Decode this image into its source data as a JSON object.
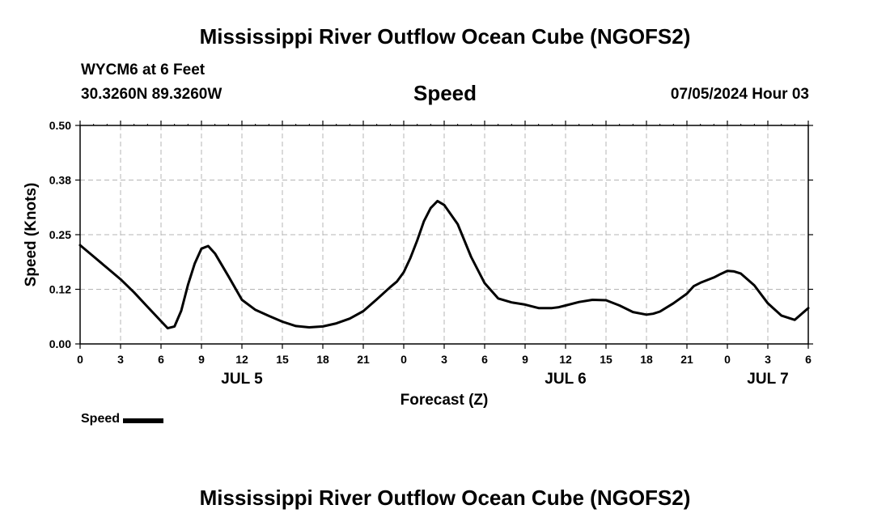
{
  "header": {
    "title": "Mississippi River Outflow Ocean Cube (NGOFS2)",
    "station": "WYCM6 at 6 Feet",
    "coords": "30.3260N  89.3260W",
    "datetime": "07/05/2024 Hour 03"
  },
  "footer": {
    "title": "Mississippi River Outflow Ocean Cube (NGOFS2)"
  },
  "legend": {
    "label": "Speed",
    "color": "#000000"
  },
  "chart_data": {
    "type": "line",
    "title": "Speed",
    "xlabel": "Forecast (Z)",
    "ylabel": "Speed (Knots)",
    "x_unit": "hours since 07/05/2024 00Z",
    "xlim": [
      0,
      54
    ],
    "ylim": [
      0,
      0.5
    ],
    "x_ticks": [
      0,
      3,
      6,
      9,
      12,
      15,
      18,
      21,
      24,
      27,
      30,
      33,
      36,
      39,
      42,
      45,
      48,
      51,
      54
    ],
    "x_tick_labels": [
      "0",
      "3",
      "6",
      "9",
      "12",
      "15",
      "18",
      "21",
      "0",
      "3",
      "6",
      "9",
      "12",
      "15",
      "18",
      "21",
      "0",
      "3",
      "6"
    ],
    "date_labels": [
      {
        "x": 12,
        "label": "JUL 5"
      },
      {
        "x": 36,
        "label": "JUL 6"
      },
      {
        "x": 51,
        "label": "JUL 7"
      }
    ],
    "y_ticks": [
      0.0,
      0.125,
      0.25,
      0.375,
      0.5
    ],
    "y_tick_labels": [
      "0.00",
      "0.12",
      "0.25",
      "0.38",
      "0.50"
    ],
    "grid": true,
    "series": [
      {
        "name": "Speed",
        "color": "#000000",
        "x": [
          0,
          1,
          2,
          3,
          4,
          5,
          6,
          6.5,
          7,
          7.5,
          8,
          8.5,
          9,
          9.5,
          10,
          11,
          12,
          13,
          14,
          15,
          16,
          17,
          18,
          19,
          20,
          21,
          22,
          23,
          23.5,
          24,
          24.5,
          25,
          25.5,
          26,
          26.5,
          27,
          28,
          29,
          30,
          31,
          32,
          33,
          34,
          35,
          35.5,
          36,
          37,
          38,
          39,
          40,
          41,
          42,
          42.5,
          43,
          44,
          45,
          45.5,
          46,
          47,
          47.5,
          48,
          48.5,
          49,
          50,
          51,
          52,
          53,
          54
        ],
        "y": [
          0.226,
          0.2,
          0.174,
          0.148,
          0.118,
          0.085,
          0.052,
          0.036,
          0.04,
          0.076,
          0.135,
          0.184,
          0.218,
          0.224,
          0.207,
          0.155,
          0.101,
          0.078,
          0.064,
          0.051,
          0.041,
          0.038,
          0.04,
          0.047,
          0.058,
          0.075,
          0.102,
          0.13,
          0.143,
          0.164,
          0.197,
          0.237,
          0.281,
          0.311,
          0.327,
          0.318,
          0.274,
          0.199,
          0.139,
          0.104,
          0.095,
          0.09,
          0.082,
          0.082,
          0.084,
          0.088,
          0.096,
          0.101,
          0.1,
          0.088,
          0.073,
          0.067,
          0.069,
          0.074,
          0.093,
          0.115,
          0.132,
          0.14,
          0.152,
          0.16,
          0.167,
          0.166,
          0.161,
          0.134,
          0.093,
          0.065,
          0.055,
          0.082
        ]
      }
    ]
  }
}
